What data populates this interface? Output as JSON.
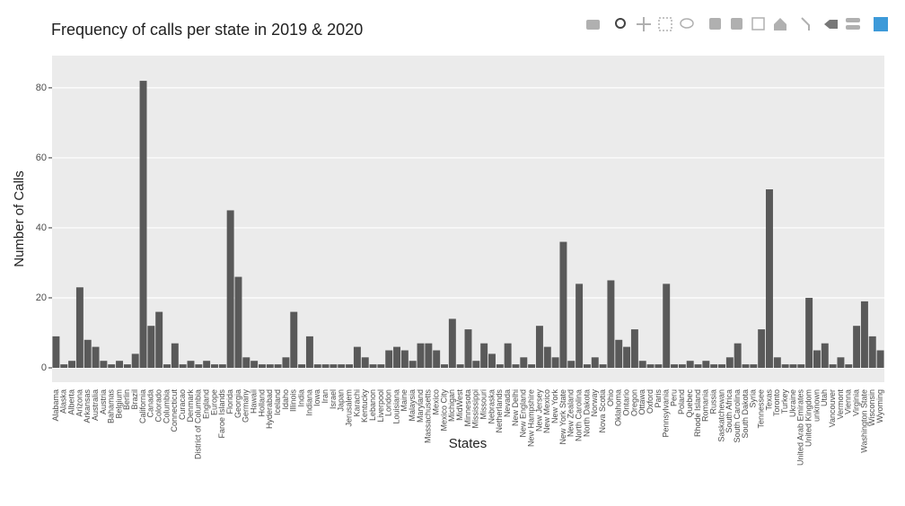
{
  "chart_data": {
    "type": "bar",
    "title": "Frequency of calls per state in 2019 & 2020",
    "x_label": "States",
    "y_label": "Number of Calls",
    "categories": [
      "Alabama",
      "Alaska",
      "Alberta",
      "Arizona",
      "Arkansas",
      "Australia",
      "Austria",
      "Bahamas",
      "Belgium",
      "Berlin",
      "Brazil",
      "California",
      "Canada",
      "Colorado",
      "Columbia",
      "Connecticut",
      "Curacao",
      "Denmark",
      "District of Columbia",
      "England",
      "Europe",
      "Faroe Islands",
      "Florida",
      "Georgia",
      "Germany",
      "Hawaii",
      "Holland",
      "Hyderabad",
      "Iceland",
      "Idaho",
      "Illinois",
      "India",
      "Indiana",
      "Iowa",
      "Iran",
      "Israel",
      "Japan",
      "Jerusalem",
      "Karachi",
      "Kentucky",
      "Lebanon",
      "Liverpool",
      "London",
      "Louisiana",
      "Maine",
      "Malaysia",
      "Maryland",
      "Massachusetts",
      "Mexico",
      "Mexico City",
      "Michigan",
      "MidWest",
      "Minnesota",
      "Mississippi",
      "Missouri",
      "Nebraska",
      "Netherlands",
      "Nevada",
      "New Delhi",
      "New England",
      "New Hampshire",
      "New Jersey",
      "New Mexico",
      "New York",
      "New York State",
      "New Zealand",
      "North Carolina",
      "North Dakota",
      "Norway",
      "Nova Scotia",
      "Ohio",
      "Oklahoma",
      "Ontario",
      "Oregon",
      "Ottawa",
      "Oxford",
      "Paris",
      "Pennsylvania",
      "Peru",
      "Poland",
      "Quebec",
      "Rhode Island",
      "Romania",
      "Russia",
      "Saskatchewan",
      "South Africa",
      "South Carolina",
      "South Dakota",
      "Syria",
      "Tennessee",
      "Texas",
      "Toronto",
      "Turkey",
      "Ukraine",
      "United Arab Emirates",
      "United Kingdom",
      "unknown",
      "Utah",
      "Vancouver",
      "Vermont",
      "Vienna",
      "Virginia",
      "Washington State",
      "Wisconsin",
      "Wyoming"
    ],
    "values": [
      9,
      1,
      2,
      23,
      8,
      6,
      2,
      1,
      2,
      1,
      4,
      82,
      12,
      16,
      1,
      7,
      1,
      2,
      1,
      2,
      1,
      1,
      45,
      26,
      3,
      2,
      1,
      1,
      1,
      3,
      16,
      1,
      9,
      1,
      1,
      1,
      1,
      1,
      6,
      3,
      1,
      1,
      5,
      6,
      5,
      2,
      7,
      7,
      5,
      1,
      14,
      1,
      11,
      2,
      7,
      4,
      1,
      7,
      1,
      3,
      1,
      12,
      6,
      3,
      36,
      2,
      24,
      1,
      3,
      1,
      25,
      8,
      6,
      11,
      2,
      1,
      1,
      24,
      1,
      1,
      2,
      1,
      2,
      1,
      1,
      3,
      7,
      1,
      1,
      11,
      51,
      3,
      1,
      1,
      1,
      20,
      5,
      7,
      1,
      3,
      1,
      12,
      19,
      9,
      5
    ],
    "color": "#595959",
    "background": "#ebebeb",
    "ylim": [
      -4.1,
      89.2
    ],
    "yticks": [
      0,
      20,
      40,
      60,
      80
    ],
    "grid": true
  }
}
